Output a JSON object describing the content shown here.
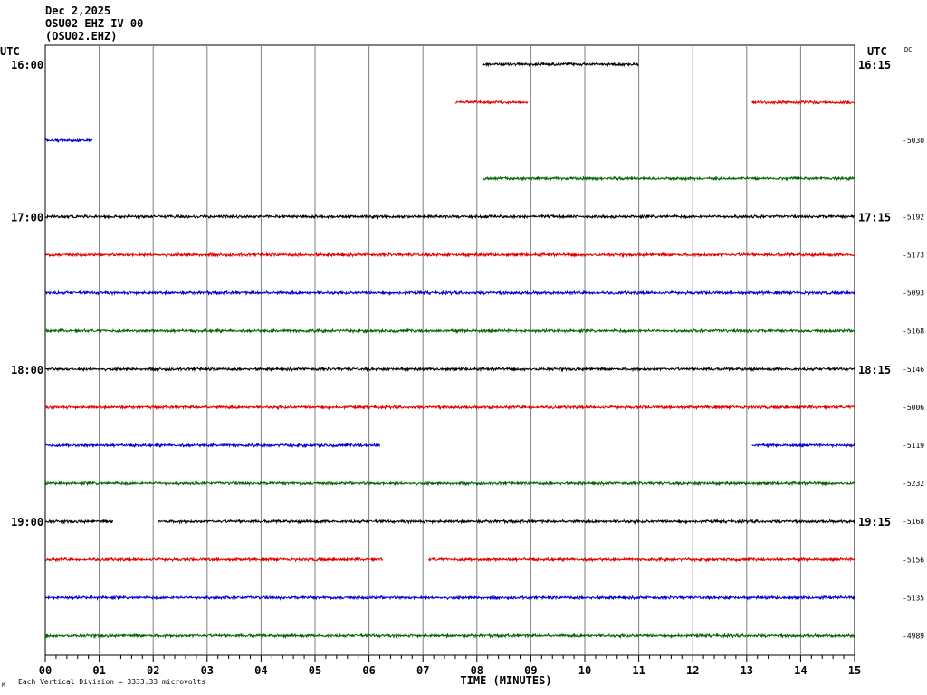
{
  "header": {
    "date": "Dec 2,2025",
    "station": "OSU02 EHZ IV 00",
    "id": "(OSU02.EHZ)"
  },
  "chart_data": {
    "type": "line",
    "title": "OSU02 EHZ IV 00",
    "xlabel": "TIME (MINUTES)",
    "x_ticks": [
      "00",
      "01",
      "02",
      "03",
      "04",
      "05",
      "06",
      "07",
      "08",
      "09",
      "10",
      "11",
      "12",
      "13",
      "14",
      "15"
    ],
    "xlim": [
      0,
      15
    ],
    "left_axis_title": "UTC",
    "right_axis_title": "UTC",
    "dc_label": "DC",
    "colors": [
      "#000000",
      "#e00000",
      "#0000cc",
      "#006600"
    ],
    "hour_labels": [
      {
        "row": 0,
        "left": "16:00",
        "right": "16:15"
      },
      {
        "row": 4,
        "left": "17:00",
        "right": "17:15"
      },
      {
        "row": 8,
        "left": "18:00",
        "right": "18:15"
      },
      {
        "row": 12,
        "left": "19:00",
        "right": "19:15"
      }
    ],
    "traces": [
      {
        "row": 0,
        "segments": [
          [
            8.1,
            11.0
          ]
        ],
        "dc": ""
      },
      {
        "row": 1,
        "segments": [
          [
            7.6,
            8.95
          ],
          [
            13.1,
            15.0
          ]
        ],
        "dc": ""
      },
      {
        "row": 2,
        "segments": [
          [
            0.0,
            0.88
          ]
        ],
        "dc": "-5030"
      },
      {
        "row": 3,
        "segments": [
          [
            8.1,
            15.0
          ]
        ],
        "dc": ""
      },
      {
        "row": 4,
        "segments": [
          [
            0.0,
            15.0
          ]
        ],
        "dc": "-5192"
      },
      {
        "row": 5,
        "segments": [
          [
            0.0,
            15.0
          ]
        ],
        "dc": "-5173"
      },
      {
        "row": 6,
        "segments": [
          [
            0.0,
            15.0
          ]
        ],
        "dc": "-5093"
      },
      {
        "row": 7,
        "segments": [
          [
            0.0,
            15.0
          ]
        ],
        "dc": "-5168"
      },
      {
        "row": 8,
        "segments": [
          [
            0.0,
            15.0
          ]
        ],
        "dc": "-5146"
      },
      {
        "row": 9,
        "segments": [
          [
            0.0,
            15.0
          ]
        ],
        "dc": "-5006"
      },
      {
        "row": 10,
        "segments": [
          [
            0.0,
            6.2
          ],
          [
            13.1,
            15.0
          ]
        ],
        "dc": "-5119"
      },
      {
        "row": 11,
        "segments": [
          [
            0.0,
            15.0
          ]
        ],
        "dc": "-5232"
      },
      {
        "row": 12,
        "segments": [
          [
            0.0,
            1.25
          ],
          [
            2.1,
            15.0
          ]
        ],
        "dc": "-5168"
      },
      {
        "row": 13,
        "segments": [
          [
            0.0,
            6.25
          ],
          [
            7.1,
            15.0
          ]
        ],
        "dc": "-5156"
      },
      {
        "row": 14,
        "segments": [
          [
            0.0,
            15.0
          ]
        ],
        "dc": "-5135"
      },
      {
        "row": 15,
        "segments": [
          [
            0.0,
            15.0
          ]
        ],
        "dc": "-4989"
      }
    ]
  },
  "footer": {
    "scale_note": "Each Vertical Division = 3333.33 microvolts",
    "tiny_mark": "M"
  }
}
